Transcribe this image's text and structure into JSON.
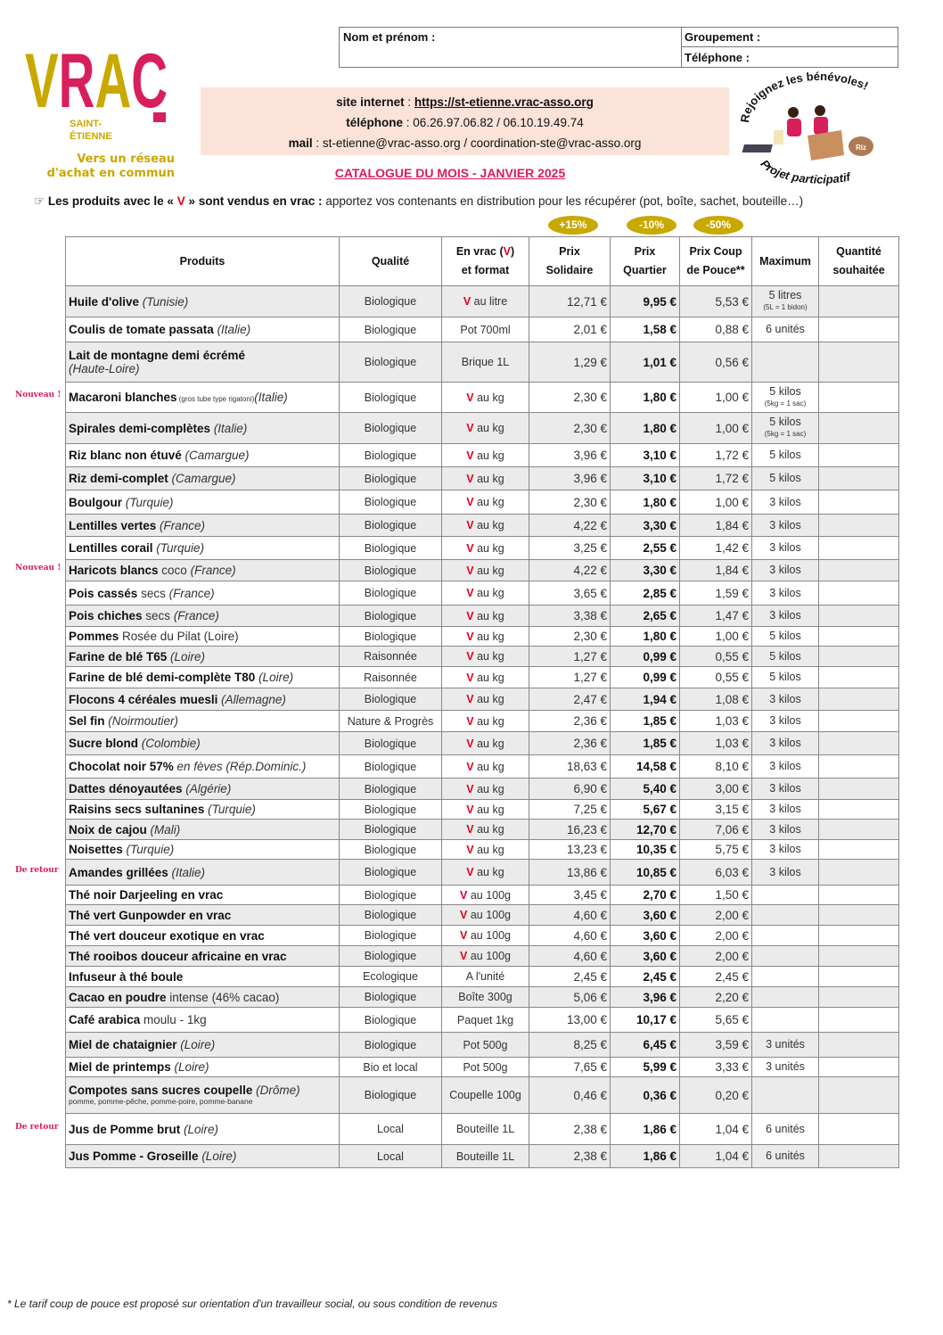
{
  "logo": {
    "text": "VRAC",
    "city": [
      "SAINT-",
      "ÉTIENNE"
    ],
    "tagline": [
      "Vers un réseau",
      "d'achat en commun"
    ],
    "colors": {
      "yellow": "#c9a800",
      "pink": "#d81e5b"
    }
  },
  "form": {
    "name_label": "Nom et prénom :",
    "group_label": "Groupement :",
    "phone_label": "Téléphone :"
  },
  "contact": {
    "site_label": "site internet",
    "site_url": "https://st-etienne.vrac-asso.org",
    "phone_label": "téléphone",
    "phone": "06.26.97.06.82 / 06.10.19.49.74",
    "mail_label": "mail",
    "mail": "st-etienne@vrac-asso.org / coordination-ste@vrac-asso.org"
  },
  "badge": {
    "top": "Rejoignez les bénévoles!",
    "bottom": "Projet participatif",
    "bag": "Riz"
  },
  "catalog_title": "CATALOGUE DU MOIS - JANVIER 2025",
  "intro": {
    "icon": "pointing-hand-icon",
    "bold1": "Les produits avec le «",
    "v": "V",
    "bold2": "» sont vendus en vrac :",
    "rest": "apportez vos contenants en distribution pour les récupérer (pot, boîte, sachet, bouteille…)"
  },
  "discounts": [
    "+15%",
    "-10%",
    "-50%"
  ],
  "headers": {
    "products": "Produits",
    "quality": "Qualité",
    "vrac1": "En vrac (",
    "vrac_v": "V",
    "vrac2": ")",
    "vrac3": "et format",
    "solidaire": [
      "Prix",
      "Solidaire"
    ],
    "quartier": [
      "Prix",
      "Quartier"
    ],
    "pouce": [
      "Prix Coup",
      "de Pouce**"
    ],
    "max": "Maximum",
    "qty": [
      "Quantité",
      "souhaitée"
    ]
  },
  "rows": [
    {
      "b": "Huile d'olive",
      "o": " (Tunisie)",
      "q": "Biologique",
      "v": true,
      "f": "au litre",
      "ps": "12,71 €",
      "pq": "9,95 €",
      "pc": "5,53 €",
      "max": "5 litres",
      "maxsub": "(5L = 1 bidon)"
    },
    {
      "b": "Coulis de tomate passata",
      "o": " (Italie)",
      "q": "Biologique",
      "f": "Pot 700ml",
      "ps": "2,01 €",
      "pq": "1,58 €",
      "pc": "0,88 €",
      "max": "6 unités"
    },
    {
      "b": "Lait de montagne demi écrémé",
      "o": "(Haute-Loire)",
      "br": true,
      "q": "Biologique",
      "f": "Brique 1L",
      "ps": "1,29 €",
      "pq": "1,01 €",
      "pc": "0,56 €"
    },
    {
      "tag": "Nouveau !",
      "b": "Macaroni blanches",
      "sm": " (gros tube type rigatoni)",
      "o": "(Italie)",
      "q": "Biologique",
      "v": true,
      "f": "au kg",
      "ps": "2,30 €",
      "pq": "1,80 €",
      "pc": "1,00 €",
      "max": "5 kilos",
      "maxsub": "(5kg = 1 sac)"
    },
    {
      "b": "Spirales demi-complètes",
      "o": " (Italie)",
      "q": "Biologique",
      "v": true,
      "f": "au kg",
      "ps": "2,30 €",
      "pq": "1,80 €",
      "pc": "1,00 €",
      "max": "5 kilos",
      "maxsub": "(5kg = 1 sac)"
    },
    {
      "b": "Riz blanc non étuvé",
      "o": " (Camargue)",
      "q": "Biologique",
      "v": true,
      "f": "au kg",
      "ps": "3,96 €",
      "pq": "3,10 €",
      "pc": "1,72 €",
      "max": "5 kilos"
    },
    {
      "b": "Riz demi-complet",
      "o": " (Camargue)",
      "q": "Biologique",
      "v": true,
      "f": "au kg",
      "ps": "3,96 €",
      "pq": "3,10 €",
      "pc": "1,72 €",
      "max": "5 kilos"
    },
    {
      "b": "Boulgour",
      "o": " (Turquie)",
      "q": "Biologique",
      "v": true,
      "f": "au kg",
      "ps": "2,30 €",
      "pq": "1,80 €",
      "pc": "1,00 €",
      "max": "3 kilos"
    },
    {
      "b": "Lentilles vertes",
      "o": " (France)",
      "q": "Biologique",
      "v": true,
      "f": "au kg",
      "ps": "4,22 €",
      "pq": "3,30 €",
      "pc": "1,84 €",
      "max": "3 kilos"
    },
    {
      "b": "Lentilles corail",
      "o": " (Turquie)",
      "q": "Biologique",
      "v": true,
      "f": "au kg",
      "ps": "3,25 €",
      "pq": "2,55 €",
      "pc": "1,42 €",
      "max": "3 kilos"
    },
    {
      "tag": "Nouveau !",
      "b": "Haricots blancs",
      "t": " coco",
      "o": " (France)",
      "q": "Biologique",
      "v": true,
      "f": "au kg",
      "ps": "4,22 €",
      "pq": "3,30 €",
      "pc": "1,84 €",
      "max": "3 kilos"
    },
    {
      "b": "Pois cassés",
      "t": " secs",
      "o": " (France)",
      "q": "Biologique",
      "v": true,
      "f": "au kg",
      "ps": "3,65 €",
      "pq": "2,85 €",
      "pc": "1,59 €",
      "max": "3 kilos"
    },
    {
      "b": "Pois chiches",
      "t": " secs",
      "o": " (France)",
      "q": "Biologique",
      "v": true,
      "f": "au kg",
      "ps": "3,38 €",
      "pq": "2,65 €",
      "pc": "1,47 €",
      "max": "3 kilos"
    },
    {
      "b": "Pommes",
      "t": " Rosée du Pilat (Loire)",
      "q": "Biologique",
      "v": true,
      "f": "au kg",
      "ps": "2,30 €",
      "pq": "1,80 €",
      "pc": "1,00 €",
      "max": "5 kilos"
    },
    {
      "b": "Farine de blé T65",
      "o": " (Loire)",
      "q": "Raisonnée",
      "v": true,
      "f": "au kg",
      "ps": "1,27 €",
      "pq": "0,99 €",
      "pc": "0,55 €",
      "max": "5 kilos"
    },
    {
      "b": "Farine de blé demi-complète T80",
      "o": " (Loire)",
      "q": "Raisonnée",
      "v": true,
      "f": "au kg",
      "ps": "1,27 €",
      "pq": "0,99 €",
      "pc": "0,55 €",
      "max": "5 kilos"
    },
    {
      "b": "Flocons 4 céréales muesli",
      "o": " (Allemagne)",
      "q": "Biologique",
      "v": true,
      "f": "au kg",
      "ps": "2,47 €",
      "pq": "1,94 €",
      "pc": "1,08 €",
      "max": "3 kilos"
    },
    {
      "b": "Sel fin",
      "o": " (Noirmoutier)",
      "q": "Nature & Progrès",
      "v": true,
      "f": "au kg",
      "ps": "2,36 €",
      "pq": "1,85 €",
      "pc": "1,03 €",
      "max": "3 kilos"
    },
    {
      "b": "Sucre blond",
      "o": " (Colombie)",
      "q": "Biologique",
      "v": true,
      "f": "au kg",
      "ps": "2,36 €",
      "pq": "1,85 €",
      "pc": "1,03 €",
      "max": "3 kilos"
    },
    {
      "b": "Chocolat noir 57%",
      "o": " en fèves (Rép.Dominic.)",
      "q": "Biologique",
      "v": true,
      "f": "au kg",
      "ps": "18,63 €",
      "pq": "14,58 €",
      "pc": "8,10 €",
      "max": "3 kilos"
    },
    {
      "b": "Dattes dénoyautées",
      "o": " (Algérie)",
      "q": "Biologique",
      "v": true,
      "f": "au kg",
      "ps": "6,90 €",
      "pq": "5,40 €",
      "pc": "3,00 €",
      "max": "3 kilos"
    },
    {
      "b": "Raisins secs sultanines",
      "o": " (Turquie)",
      "q": "Biologique",
      "v": true,
      "f": "au kg",
      "ps": "7,25 €",
      "pq": "5,67 €",
      "pc": "3,15 €",
      "max": "3 kilos"
    },
    {
      "b": "Noix de cajou",
      "o": " (Mali)",
      "q": "Biologique",
      "v": true,
      "f": "au kg",
      "ps": "16,23 €",
      "pq": "12,70 €",
      "pc": "7,06 €",
      "max": "3 kilos"
    },
    {
      "b": "Noisettes",
      "o": " (Turquie)",
      "q": "Biologique",
      "v": true,
      "f": "au kg",
      "ps": "13,23 €",
      "pq": "10,35 €",
      "pc": "5,75 €",
      "max": "3 kilos"
    },
    {
      "tag": "De retour",
      "b": "Amandes grillées",
      "o": " (Italie)",
      "q": "Biologique",
      "v": true,
      "f": "au kg",
      "ps": "13,86 €",
      "pq": "10,85 €",
      "pc": "6,03 €",
      "max": "3 kilos"
    },
    {
      "b": "Thé noir Darjeeling en vrac",
      "q": "Biologique",
      "v": true,
      "f": "au 100g",
      "ps": "3,45 €",
      "pq": "2,70 €",
      "pc": "1,50 €"
    },
    {
      "b": "Thé vert Gunpowder en vrac",
      "q": "Biologique",
      "v": true,
      "f": "au 100g",
      "ps": "4,60 €",
      "pq": "3,60 €",
      "pc": "2,00 €"
    },
    {
      "b": "Thé vert douceur exotique en vrac",
      "q": "Biologique",
      "v": true,
      "f": "au 100g",
      "ps": "4,60 €",
      "pq": "3,60 €",
      "pc": "2,00 €"
    },
    {
      "b": "Thé rooibos douceur africaine en vrac",
      "q": "Biologique",
      "v": true,
      "f": "au 100g",
      "ps": "4,60 €",
      "pq": "3,60 €",
      "pc": "2,00 €"
    },
    {
      "b": "Infuseur à thé boule",
      "q": "Ecologique",
      "f": "A l'unité",
      "ps": "2,45 €",
      "pq": "2,45 €",
      "pc": "2,45 €"
    },
    {
      "b": "Cacao en poudre",
      "t": " intense (46% cacao)",
      "q": "Biologique",
      "f": "Boîte 300g",
      "ps": "5,06 €",
      "pq": "3,96 €",
      "pc": "2,20 €"
    },
    {
      "b": "Café arabica",
      "t": " moulu - 1kg",
      "q": "Biologique",
      "f": "Paquet 1kg",
      "ps": "13,00 €",
      "pq": "10,17 €",
      "pc": "5,65 €"
    },
    {
      "b": "Miel de chataignier",
      "o": " (Loire)",
      "q": "Biologique",
      "f": "Pot 500g",
      "ps": "8,25 €",
      "pq": "6,45 €",
      "pc": "3,59 €",
      "max": "3 unités"
    },
    {
      "b": "Miel de printemps",
      "o": " (Loire)",
      "q": "Bio et local",
      "f": "Pot 500g",
      "ps": "7,65 €",
      "pq": "5,99 €",
      "pc": "3,33 €",
      "max": "3 unités"
    },
    {
      "b": "Compotes sans sucres coupelle",
      "o": " (Drôme)",
      "sub": "pomme, pomme-pêche, pomme-poire, pomme-banane",
      "q": "Biologique",
      "f": "Coupelle 100g",
      "ps": "0,46 €",
      "pq": "0,36 €",
      "pc": "0,20 €"
    },
    {
      "tag": "De retour",
      "b": "Jus de Pomme brut",
      "o": " (Loire)",
      "q": "Local",
      "f": "Bouteille 1L",
      "ps": "2,38 €",
      "pq": "1,86 €",
      "pc": "1,04 €",
      "max": "6 unités"
    },
    {
      "b": "Jus Pomme - Groseille",
      "o": " (Loire)",
      "q": "Local",
      "f": "Bouteille 1L",
      "ps": "2,38 €",
      "pq": "1,86 €",
      "pc": "1,04 €",
      "max": "6 unités"
    }
  ],
  "footnote": "* Le tarif coup de pouce est proposé sur orientation d'un travailleur social, ou sous condition de revenus"
}
